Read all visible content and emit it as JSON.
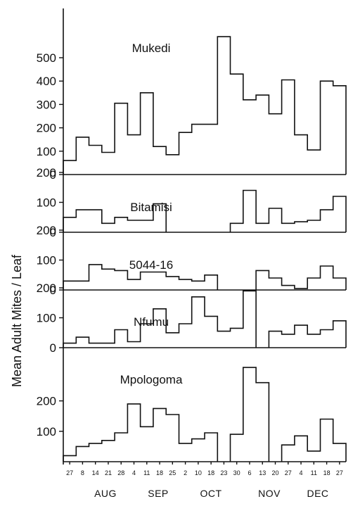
{
  "chart_data": {
    "type": "step",
    "ylabel": "Mean Adult Mites / Leaf",
    "x_tick_labels": [
      "27",
      "8",
      "14",
      "21",
      "28",
      "4",
      "11",
      "18",
      "25",
      "2",
      "10",
      "18",
      "23",
      "30",
      "6",
      "13",
      "20",
      "27",
      "4",
      "11",
      "18",
      "27"
    ],
    "months": [
      "AUG",
      "SEP",
      "OCT",
      "NOV",
      "DEC"
    ],
    "panels": [
      {
        "name": "Mukedi",
        "yticks": [
          0,
          100,
          200,
          300,
          400,
          500
        ],
        "values": [
          60,
          160,
          125,
          95,
          305,
          170,
          350,
          120,
          85,
          180,
          215,
          215,
          590,
          430,
          320,
          340,
          260,
          405,
          170,
          105,
          400,
          380
        ]
      },
      {
        "name": "Bitamisi",
        "yticks": [
          0,
          100,
          200
        ],
        "values": [
          50,
          75,
          75,
          30,
          50,
          40,
          40,
          95,
          null,
          null,
          null,
          null,
          null,
          30,
          140,
          30,
          80,
          30,
          35,
          40,
          75,
          120
        ]
      },
      {
        "name": "5044-16",
        "yticks": [
          0,
          100,
          200
        ],
        "values": [
          30,
          30,
          85,
          70,
          65,
          35,
          60,
          60,
          45,
          35,
          30,
          50,
          null,
          null,
          null,
          65,
          40,
          15,
          5,
          40,
          80,
          40
        ]
      },
      {
        "name": "Nfumu",
        "yticks": [
          0,
          100,
          200
        ],
        "values": [
          15,
          35,
          15,
          15,
          60,
          20,
          80,
          130,
          50,
          80,
          170,
          105,
          55,
          65,
          190,
          null,
          55,
          45,
          75,
          45,
          60,
          90
        ]
      },
      {
        "name": "Mpologoma",
        "yticks": [
          100,
          200
        ],
        "values": [
          20,
          50,
          60,
          70,
          95,
          190,
          115,
          175,
          155,
          60,
          75,
          95,
          null,
          90,
          310,
          260,
          null,
          55,
          85,
          35,
          140,
          60
        ]
      }
    ]
  }
}
